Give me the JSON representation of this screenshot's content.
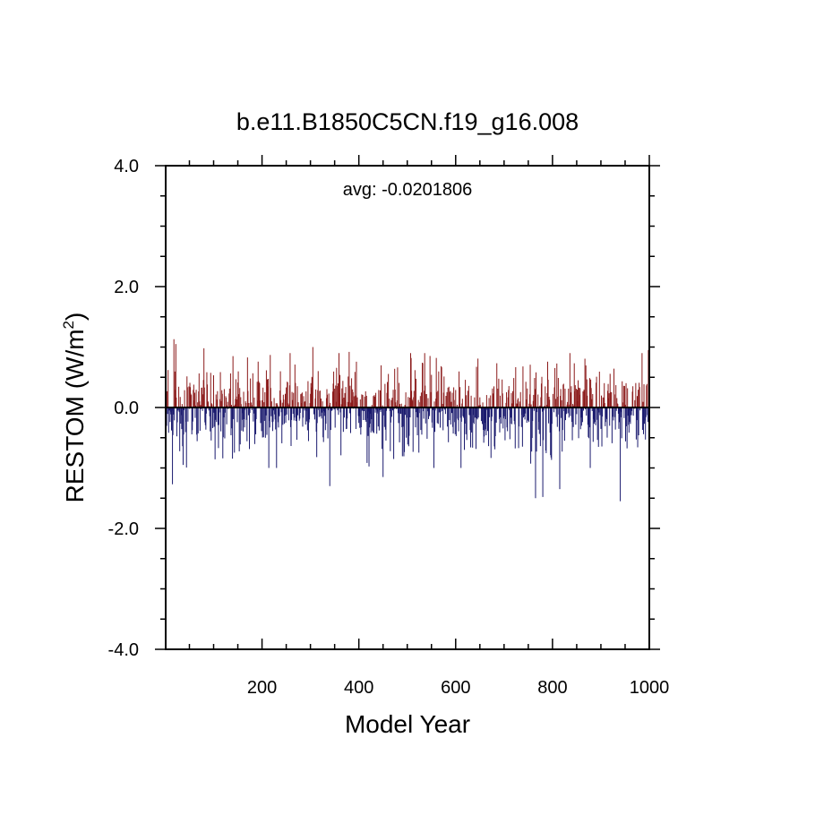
{
  "chart_data": {
    "type": "bar",
    "title": "b.e11.B1850C5CN.f19_g16.008",
    "annotation": "avg: -0.0201806",
    "xlabel": "Model Year",
    "ylabel": "RESTOM (W/m",
    "ylabel_superscript": "2",
    "ylabel_close": ")",
    "xlim": [
      1,
      1000
    ],
    "ylim": [
      -4.0,
      4.0
    ],
    "x_ticks": [
      200,
      400,
      600,
      800,
      1000
    ],
    "x_tick_labels": [
      "200",
      "400",
      "600",
      "800",
      "1000"
    ],
    "y_ticks": [
      -4.0,
      -2.0,
      0.0,
      2.0,
      4.0
    ],
    "y_tick_labels": [
      "-4.0",
      "-2.0",
      "0.0",
      "2.0",
      "4.0"
    ],
    "baseline": 0.0,
    "n_points": 1000,
    "positive_color": "#8b1a1a",
    "negative_color": "#1a1a6e",
    "outline_color": "#000000",
    "notable_points": [
      {
        "x": 15,
        "y": -1.27
      },
      {
        "x": 18,
        "y": 1.13
      },
      {
        "x": 22,
        "y": 1.05
      },
      {
        "x": 80,
        "y": 0.98
      },
      {
        "x": 140,
        "y": 0.85
      },
      {
        "x": 230,
        "y": -1.0
      },
      {
        "x": 305,
        "y": 1.0
      },
      {
        "x": 340,
        "y": -1.3
      },
      {
        "x": 380,
        "y": 0.92
      },
      {
        "x": 450,
        "y": -1.15
      },
      {
        "x": 560,
        "y": 0.82
      },
      {
        "x": 765,
        "y": -1.5
      },
      {
        "x": 780,
        "y": -1.48
      },
      {
        "x": 815,
        "y": -1.35
      },
      {
        "x": 940,
        "y": -1.55
      },
      {
        "x": 998,
        "y": 0.95
      }
    ],
    "values_mean": -0.0201806,
    "values_std": 0.35
  }
}
